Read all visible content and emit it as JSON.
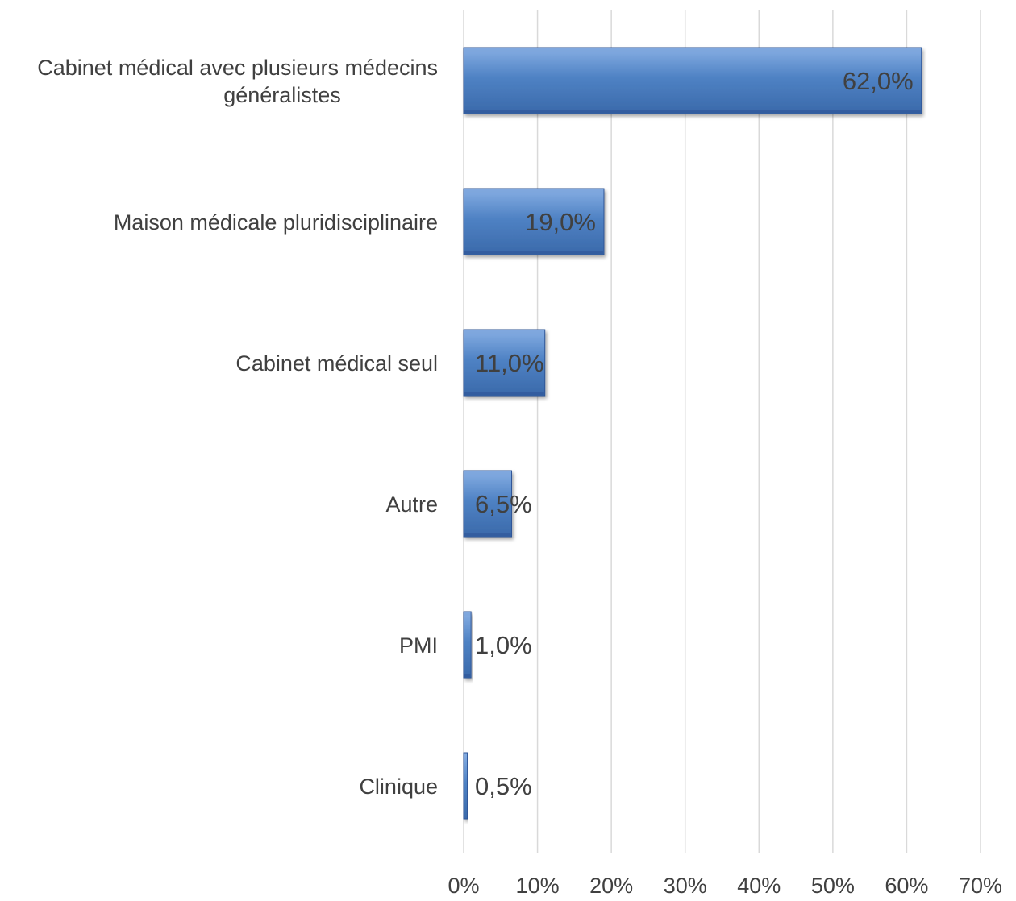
{
  "chart_data": {
    "type": "bar",
    "orientation": "horizontal",
    "categories": [
      [
        "Cabinet médical avec plusieurs médecins",
        "généralistes"
      ],
      [
        "Maison médicale pluridisciplinaire"
      ],
      [
        "Cabinet médical seul"
      ],
      [
        "Autre"
      ],
      [
        "PMI"
      ],
      [
        "Clinique"
      ]
    ],
    "values": [
      62.0,
      19.0,
      11.0,
      6.5,
      1.0,
      0.5
    ],
    "value_labels": [
      "62,0%",
      "19,0%",
      "11,0%",
      "6,5%",
      "1,0%",
      "0,5%"
    ],
    "xlim": [
      0,
      70
    ],
    "x_ticks": [
      0,
      10,
      20,
      30,
      40,
      50,
      60,
      70
    ],
    "x_tick_labels": [
      "0%",
      "10%",
      "20%",
      "30%",
      "40%",
      "50%",
      "60%",
      "70%"
    ],
    "grid": true,
    "bar_color": "#4a7ebb",
    "bar_highlight": "#7ea6dc",
    "bar_shadow": "#2f5597"
  }
}
